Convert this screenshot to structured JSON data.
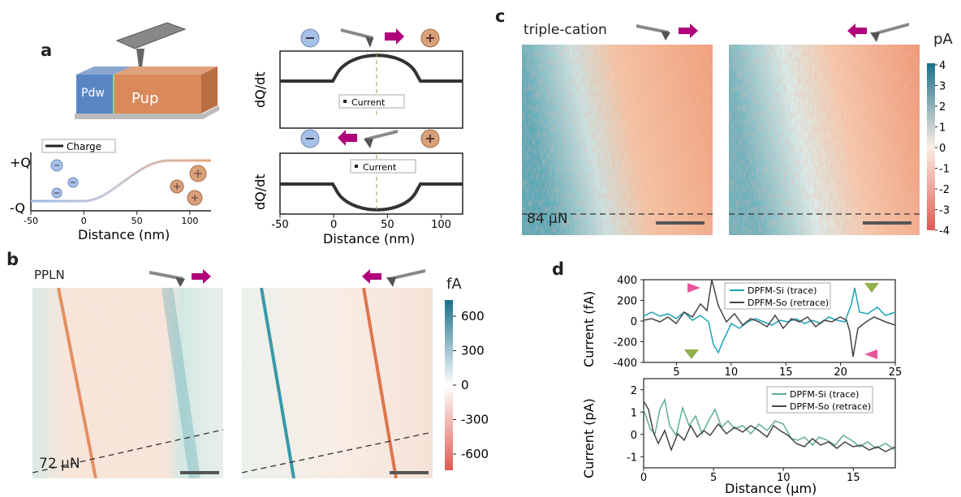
{
  "panels": {
    "a": {
      "letter": "a",
      "block": {
        "left_label": "Pdw",
        "right_label": "Pup"
      },
      "charge_plot": {
        "legend": "Charge",
        "y_top": "+Q",
        "y_bottom": "-Q",
        "xlabel": "Distance (nm)",
        "xticks": [
          "-50",
          "0",
          "50",
          "100"
        ]
      },
      "current_plot_top": {
        "ylabel": "dQ/dt",
        "legend": "Current"
      },
      "current_plot_bottom": {
        "ylabel": "dQ/dt",
        "legend": "Current",
        "xlabel": "Distance (nm)",
        "xticks": [
          "-50",
          "0",
          "50",
          "100"
        ]
      }
    },
    "b": {
      "letter": "b",
      "sample": "PPLN",
      "force": "72 μN",
      "colorbar": {
        "unit": "fA",
        "ticks": [
          "600",
          "300",
          "0",
          "-300",
          "-600"
        ]
      }
    },
    "c": {
      "letter": "c",
      "sample": "triple-cation",
      "force": "84 μN",
      "colorbar": {
        "unit": "pA",
        "ticks": [
          "4",
          "3",
          "2",
          "1",
          "0",
          "-1",
          "-2",
          "-3",
          "-4"
        ]
      }
    },
    "d": {
      "letter": "d",
      "top": {
        "ylabel": "Current (fA)",
        "yticks": [
          "400",
          "200",
          "0",
          "-200",
          "-400"
        ],
        "xticks": [
          "5",
          "10",
          "15",
          "20",
          "25"
        ],
        "legend": [
          "DPFM-Si (trace)",
          "DPFM-So (retrace)"
        ]
      },
      "bottom": {
        "ylabel": "Current (pA)",
        "yticks": [
          "2",
          "1",
          "0",
          "-1"
        ],
        "xticks": [
          "0",
          "5",
          "10",
          "15"
        ],
        "legend": [
          "DPFM-Si (trace)",
          "DPFM-So (retrace)"
        ],
        "xlabel": "Distance (μm)"
      }
    }
  },
  "colors": {
    "cyan": "#1aa3b8",
    "teal_light": "#5fae8f",
    "dark": "#444444",
    "magenta": "#b0007a",
    "pink": "#e8559b",
    "green": "#8fb04a",
    "orange": "#e07a45",
    "blue_block": "#5b86c4",
    "orange_block": "#d9895a"
  }
}
